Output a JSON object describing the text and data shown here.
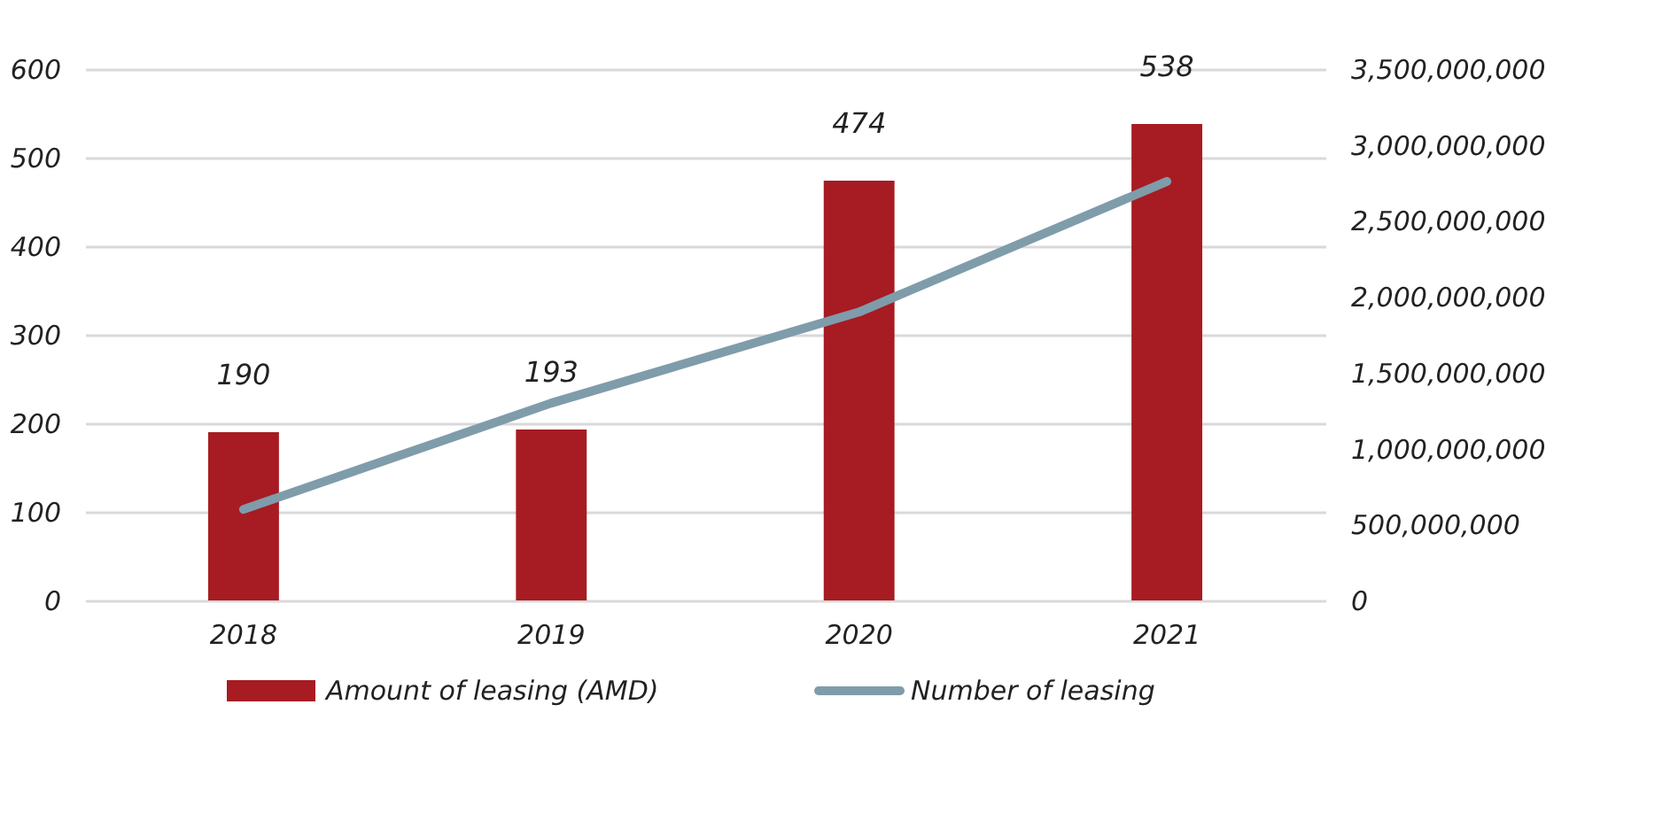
{
  "chart_data": {
    "type": "bar",
    "categories": [
      "2018",
      "2019",
      "2020",
      "2021"
    ],
    "series": [
      {
        "name": "Amount of leasing (AMD)",
        "color": "#a61c22",
        "values": [
          190,
          193,
          474,
          538
        ],
        "value_labels": [
          "190",
          "193",
          "474",
          "538"
        ]
      },
      {
        "name": "Number of leasing",
        "type": "line",
        "axis": "y2",
        "color": "#7f9cab",
        "values": [
          600000000,
          1300000000,
          1900000000,
          2760000000
        ]
      }
    ],
    "ylim": [
      0,
      600
    ],
    "yticks": [
      0,
      100,
      200,
      300,
      400,
      500,
      600
    ],
    "y2lim": [
      0,
      3500000000
    ],
    "y2ticks": [
      {
        "value": 0,
        "label": "0"
      },
      {
        "value": 500000000,
        "label": "500,000,000"
      },
      {
        "value": 1000000000,
        "label": "1,000,000,000"
      },
      {
        "value": 1500000000,
        "label": "1,500,000,000"
      },
      {
        "value": 2000000000,
        "label": "2,000,000,000"
      },
      {
        "value": 2500000000,
        "label": "2,500,000,000"
      },
      {
        "value": 3000000000,
        "label": "3,000,000,000"
      },
      {
        "value": 3500000000,
        "label": "3,500,000,000"
      }
    ],
    "grid": "y",
    "legend": "bottom",
    "marker": "none",
    "line_style": "solid"
  }
}
